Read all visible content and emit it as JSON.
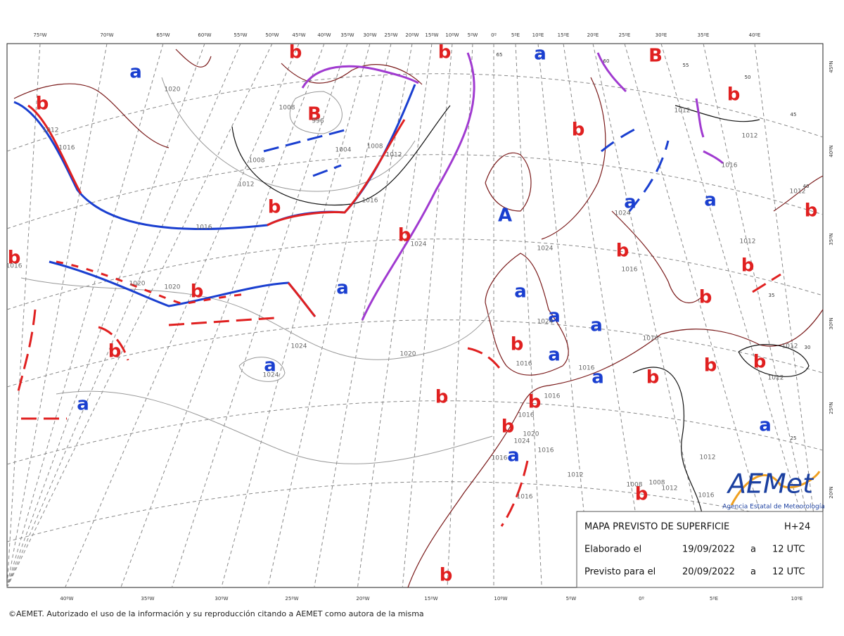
{
  "map": {
    "top_lon_labels": [
      "75ºW",
      "70ºW",
      "65ºW",
      "60ºW",
      "55ºW",
      "50ºW",
      "45ºW",
      "40ºW",
      "35ºW",
      "30ºW",
      "25ºW",
      "20ºW",
      "15ºW",
      "10ºW",
      "5ºW",
      "0º",
      "5ºE",
      "10ºE",
      "15ºE",
      "20ºE",
      "25ºE",
      "30ºE",
      "35ºE",
      "40ºE"
    ],
    "bottom_lon_labels": [
      "40ºW",
      "35ºW",
      "30ºW",
      "25ºW",
      "20ºW",
      "15ºW",
      "10ºW",
      "5ºW",
      "0º",
      "5ºE",
      "10ºE"
    ],
    "right_lat_labels": [
      "45ºN",
      "40ºN",
      "35ºN",
      "30ºN",
      "25ºN",
      "20ºN"
    ],
    "pressure_centers": [
      "a",
      "b",
      "b",
      "a",
      "B",
      "b",
      "b",
      "B",
      "b",
      "a",
      "a",
      "b",
      "A",
      "b",
      "b",
      "b",
      "b",
      "b",
      "a",
      "a",
      "b",
      "b",
      "a",
      "a",
      "b",
      "b",
      "a",
      "a",
      "b",
      "b",
      "a",
      "b",
      "a",
      "b",
      "b",
      "a",
      "b",
      "a",
      "b",
      "b"
    ],
    "isobar_labels": [
      "1020",
      "1008",
      "996",
      "1012",
      "1016",
      "1004",
      "1008",
      "1012",
      "1008",
      "1012",
      "1016",
      "1016",
      "1024",
      "1024",
      "1012",
      "1016",
      "1020",
      "1020",
      "1016",
      "1024",
      "1020",
      "1024",
      "1016",
      "1016",
      "1016",
      "1024",
      "1016",
      "1016",
      "1020",
      "1024",
      "1016",
      "1016",
      "1012",
      "1012",
      "1008",
      "1008",
      "1012",
      "1016",
      "1016",
      "1012",
      "1012",
      "1016",
      "1024",
      "1012",
      "1012",
      "1012"
    ],
    "latitude_marks": [
      "65",
      "60",
      "55",
      "50",
      "45",
      "40",
      "35",
      "30",
      "25"
    ]
  },
  "info_box": {
    "title": "MAPA PREVISTO DE SUPERFICIE",
    "lead_time": "H+24",
    "rows": [
      [
        "Elaborado el",
        "19/09/2022",
        "a",
        "12 UTC"
      ],
      [
        "Previsto para el",
        "20/09/2022",
        "a",
        "12 UTC"
      ]
    ]
  },
  "logo": {
    "name": "AEMet",
    "subtitle": "Agencia Estatal de Meteorología"
  },
  "footer": {
    "copyright": "©AEMET. Autorizado el uso de la información y su reproducción citando a AEMET como autora de la misma"
  }
}
